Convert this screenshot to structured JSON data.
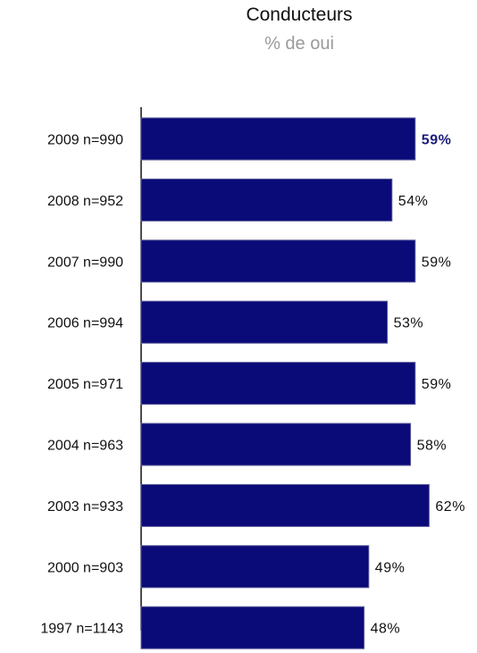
{
  "chart_data": {
    "type": "bar",
    "orientation": "horizontal",
    "title": "Conducteurs",
    "subtitle": "% de oui",
    "categories": [
      "2009 n=990",
      "2008 n=952",
      "2007 n=990",
      "2006 n=994",
      "2005 n=971",
      "2004 n=963",
      "2003 n=933",
      "2000 n=903",
      "1997 n=1143"
    ],
    "values": [
      59,
      54,
      59,
      53,
      59,
      58,
      62,
      49,
      48
    ],
    "value_labels": [
      "59%",
      "54%",
      "59%",
      "53%",
      "59%",
      "58%",
      "62%",
      "49%",
      "48%"
    ],
    "highlight_index": 0,
    "bar_color": "#0a0a78",
    "highlight_label_color": "#1a1a7a",
    "xlim": [
      0,
      100
    ],
    "grid": false,
    "legend": "none"
  }
}
